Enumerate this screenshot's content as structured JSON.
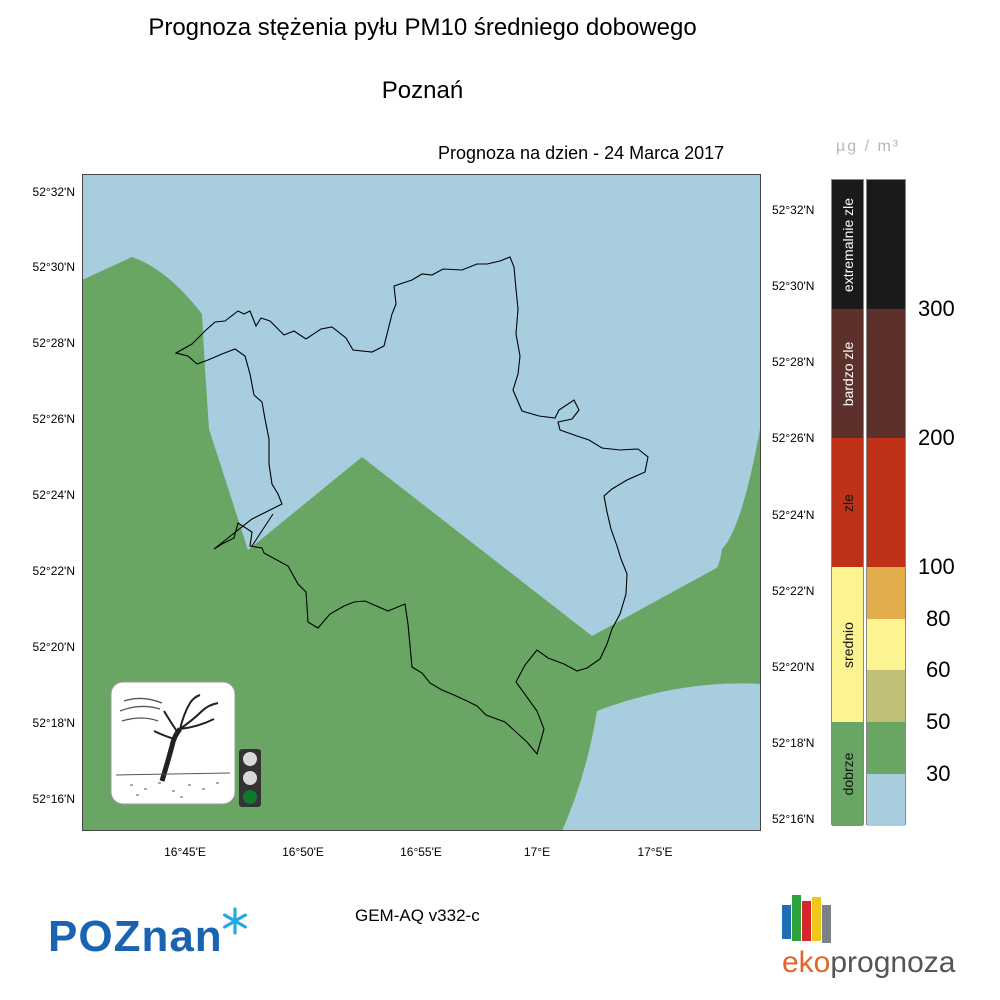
{
  "header": {
    "title": "Prognoza stężenia pyłu PM10 średniego dobowego",
    "city": "Poznań",
    "forecast_date": "Prognoza na dzien -  24 Marca 2017"
  },
  "map": {
    "lat_labels": [
      "52°32'N",
      "52°30'N",
      "52°28'N",
      "52°26'N",
      "52°24'N",
      "52°22'N",
      "52°20'N",
      "52°18'N",
      "52°16'N"
    ],
    "lon_labels": [
      "16°45'E",
      "16°50'E",
      "16°55'E",
      "17°E",
      "17°5'E"
    ],
    "colors": {
      "water_blue": "#a8cddf",
      "good_green": "#69a664",
      "boundary": "#000000"
    },
    "traffic_light": {
      "active": "green",
      "states": [
        "off",
        "off",
        "on"
      ]
    }
  },
  "legend": {
    "unit": "µg / m³",
    "categories": [
      {
        "label": "extremalnie zle",
        "color": "#1a1a1a"
      },
      {
        "label": "bardzo zle",
        "color": "#5d302b"
      },
      {
        "label": "zle",
        "color": "#bf3218"
      },
      {
        "label": "srednio",
        "color": "#fcf391"
      },
      {
        "label": "dobrze",
        "color": "#69a664"
      }
    ],
    "scale_colors": [
      "#1a1a1a",
      "#5d302b",
      "#bf3218",
      "#e2ac4a",
      "#fcf391",
      "#c0bf77",
      "#69a664",
      "#a8cddf"
    ],
    "scale_values": [
      "300",
      "200",
      "100",
      "80",
      "60",
      "50",
      "30"
    ]
  },
  "footer": {
    "model": "GEM-AQ v332-c",
    "poznan_logo": "POZnan",
    "ekoprognoza_eko": "eko",
    "ekoprognoza_rest": "prognoza"
  }
}
